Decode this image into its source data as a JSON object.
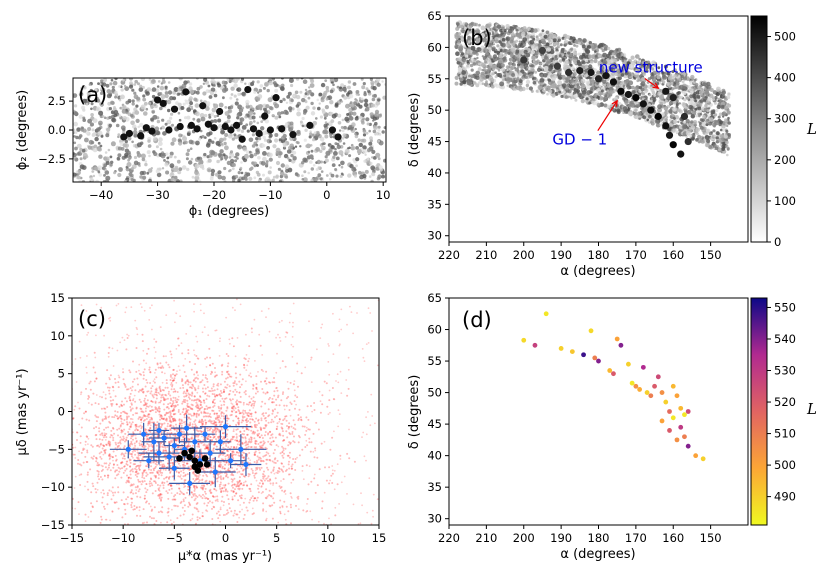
{
  "chart_data": [
    {
      "panel": "(a)",
      "type": "scatter",
      "xlabel": "ϕ₁ (degrees)",
      "ylabel": "ϕ₂ (degrees)",
      "xlim": [
        -45,
        10.5
      ],
      "ylim": [
        -4.5,
        4.5
      ],
      "xticks": [
        -40,
        -30,
        -20,
        -10,
        0,
        10
      ],
      "yticks": [
        -2.5,
        0.0,
        2.5
      ],
      "xtick_labels": [
        "−40",
        "−30",
        "−20",
        "−10",
        "0",
        "10"
      ],
      "ytick_labels": [
        "−2.5",
        "0.0",
        "2.5"
      ],
      "background_points": "dense grey field across full panel",
      "stream_points": [
        {
          "x": -36,
          "y": -0.6
        },
        {
          "x": -35,
          "y": -0.3
        },
        {
          "x": -33,
          "y": -0.5
        },
        {
          "x": -32,
          "y": 0.2
        },
        {
          "x": -31,
          "y": -0.1
        },
        {
          "x": -30,
          "y": 2.6
        },
        {
          "x": -29,
          "y": 2.3
        },
        {
          "x": -28,
          "y": 0.0
        },
        {
          "x": -27,
          "y": 1.8
        },
        {
          "x": -26,
          "y": 0.3
        },
        {
          "x": -25,
          "y": 3.3
        },
        {
          "x": -24,
          "y": 0.4
        },
        {
          "x": -23,
          "y": 0.1
        },
        {
          "x": -22,
          "y": 2.1
        },
        {
          "x": -21,
          "y": 0.5
        },
        {
          "x": -20,
          "y": 0.2
        },
        {
          "x": -19,
          "y": 1.6
        },
        {
          "x": -18,
          "y": 0.3
        },
        {
          "x": -17,
          "y": 0.0
        },
        {
          "x": -16,
          "y": 0.4
        },
        {
          "x": -15,
          "y": -0.8
        },
        {
          "x": -14,
          "y": 3.5
        },
        {
          "x": -13,
          "y": 0.1
        },
        {
          "x": -12,
          "y": -0.3
        },
        {
          "x": -11,
          "y": 1.2
        },
        {
          "x": -10,
          "y": 0.0
        },
        {
          "x": -9,
          "y": 2.8
        },
        {
          "x": -8,
          "y": 0.1
        },
        {
          "x": -6,
          "y": -0.4
        },
        {
          "x": -3,
          "y": 0.4
        },
        {
          "x": 1,
          "y": 0.0
        },
        {
          "x": 2,
          "y": -0.6
        }
      ]
    },
    {
      "panel": "(b)",
      "type": "scatter",
      "xlabel": "α (degrees)",
      "ylabel": "δ (degrees)",
      "xlim": [
        220,
        140
      ],
      "ylim": [
        29,
        65
      ],
      "xticks": [
        220,
        210,
        200,
        190,
        180,
        170,
        160,
        150
      ],
      "yticks": [
        30,
        35,
        40,
        45,
        50,
        55,
        60,
        65
      ],
      "colorbar": {
        "label": "L",
        "min": 0,
        "max": 550,
        "ticks": [
          0,
          100,
          200,
          300,
          400,
          500
        ],
        "cmap": "greys"
      },
      "annotations": [
        {
          "text": "new structure",
          "x": 166,
          "y": 56.0,
          "arrow_to": [
            164,
            53.5
          ]
        },
        {
          "text": "GD − 1",
          "x": 185,
          "y": 44.5,
          "arrow_to": [
            175,
            51.5
          ]
        }
      ],
      "stream_points": [
        {
          "x": 191,
          "y": 57.0,
          "L": 420
        },
        {
          "x": 188,
          "y": 56.0,
          "L": 450
        },
        {
          "x": 185,
          "y": 56.3,
          "L": 480
        },
        {
          "x": 182,
          "y": 56.0,
          "L": 500
        },
        {
          "x": 180,
          "y": 55.0,
          "L": 470
        },
        {
          "x": 178,
          "y": 55.5,
          "L": 510
        },
        {
          "x": 176,
          "y": 54.5,
          "L": 520
        },
        {
          "x": 174,
          "y": 53.0,
          "L": 530
        },
        {
          "x": 172,
          "y": 52.5,
          "L": 500
        },
        {
          "x": 170,
          "y": 52.0,
          "L": 540
        },
        {
          "x": 168,
          "y": 51.0,
          "L": 510
        },
        {
          "x": 166,
          "y": 50.0,
          "L": 530
        },
        {
          "x": 164,
          "y": 49.0,
          "L": 545
        },
        {
          "x": 162,
          "y": 47.5,
          "L": 520
        },
        {
          "x": 161,
          "y": 46.0,
          "L": 500
        },
        {
          "x": 160,
          "y": 44.5,
          "L": 540
        },
        {
          "x": 158,
          "y": 43.0,
          "L": 510
        },
        {
          "x": 162,
          "y": 53.0,
          "L": 500
        },
        {
          "x": 160,
          "y": 52.0,
          "L": 480
        },
        {
          "x": 157,
          "y": 49.0,
          "L": 460
        },
        {
          "x": 156,
          "y": 45.0,
          "L": 450
        },
        {
          "x": 200,
          "y": 58.0,
          "L": 430
        },
        {
          "x": 195,
          "y": 59.5,
          "L": 410
        }
      ]
    },
    {
      "panel": "(c)",
      "type": "scatter",
      "xlabel": "μ*α (mas yr⁻¹)",
      "ylabel": "μδ (mas yr⁻¹)",
      "xlim": [
        -15,
        15
      ],
      "ylim": [
        -15,
        15
      ],
      "xticks": [
        -15,
        -10,
        -5,
        0,
        5,
        10,
        15
      ],
      "yticks": [
        -15,
        -10,
        -5,
        0,
        5,
        10,
        15
      ],
      "xtick_labels": [
        "−15",
        "−10",
        "−5",
        "0",
        "5",
        "10",
        "15"
      ],
      "ytick_labels": [
        "−15",
        "−10",
        "−5",
        "0",
        "5",
        "10",
        "15"
      ],
      "background_points": "dense red field centred near (-3, -4)",
      "measurements": [
        {
          "x": -9.5,
          "y": -5.0,
          "ex": 1.8,
          "ey": 1.2
        },
        {
          "x": -8.0,
          "y": -3.0,
          "ex": 1.5,
          "ey": 1.5
        },
        {
          "x": -7.0,
          "y": -4.0,
          "ex": 1.2,
          "ey": 2.5
        },
        {
          "x": -6.5,
          "y": -5.5,
          "ex": 2.0,
          "ey": 1.5
        },
        {
          "x": -6.0,
          "y": -3.5,
          "ex": 1.5,
          "ey": 1.0
        },
        {
          "x": -5.5,
          "y": -6.0,
          "ex": 2.5,
          "ey": 1.8
        },
        {
          "x": -5.0,
          "y": -4.5,
          "ex": 1.0,
          "ey": 1.0
        },
        {
          "x": -5.0,
          "y": -7.5,
          "ex": 1.5,
          "ey": 1.5
        },
        {
          "x": -4.5,
          "y": -3.0,
          "ex": 1.8,
          "ey": 1.2
        },
        {
          "x": -4.0,
          "y": -5.0,
          "ex": 1.0,
          "ey": 1.5
        },
        {
          "x": -3.5,
          "y": -9.5,
          "ex": 2.0,
          "ey": 1.5
        },
        {
          "x": -3.0,
          "y": -4.0,
          "ex": 1.5,
          "ey": 2.0
        },
        {
          "x": -2.5,
          "y": -6.5,
          "ex": 2.5,
          "ey": 1.5
        },
        {
          "x": -2.0,
          "y": -3.0,
          "ex": 1.0,
          "ey": 1.0
        },
        {
          "x": -1.5,
          "y": -5.5,
          "ex": 1.5,
          "ey": 1.8
        },
        {
          "x": -1.0,
          "y": -8.0,
          "ex": 2.0,
          "ey": 2.0
        },
        {
          "x": -0.5,
          "y": -4.0,
          "ex": 1.0,
          "ey": 1.5
        },
        {
          "x": 0.0,
          "y": -2.0,
          "ex": 2.5,
          "ey": 1.5
        },
        {
          "x": 0.5,
          "y": -6.5,
          "ex": 1.5,
          "ey": 1.0
        },
        {
          "x": 1.5,
          "y": -5.0,
          "ex": 2.5,
          "ey": 2.0
        },
        {
          "x": 2.0,
          "y": -7.0,
          "ex": 1.5,
          "ey": 1.5
        },
        {
          "x": -7.5,
          "y": -6.5,
          "ex": 1.5,
          "ey": 1.0
        },
        {
          "x": -6.5,
          "y": -2.5,
          "ex": 1.0,
          "ey": 1.0
        },
        {
          "x": -3.8,
          "y": -2.2,
          "ex": 1.5,
          "ey": 1.8
        }
      ],
      "mean_points": [
        {
          "x": -4.0,
          "y": -5.5
        },
        {
          "x": -3.5,
          "y": -6.0
        },
        {
          "x": -3.0,
          "y": -6.5
        },
        {
          "x": -2.5,
          "y": -7.0
        },
        {
          "x": -3.0,
          "y": -7.3
        },
        {
          "x": -2.0,
          "y": -6.2
        },
        {
          "x": -4.5,
          "y": -6.2
        },
        {
          "x": -3.3,
          "y": -5.2
        },
        {
          "x": -2.7,
          "y": -7.8
        },
        {
          "x": -1.8,
          "y": -7.0
        }
      ]
    },
    {
      "panel": "(d)",
      "type": "scatter",
      "xlabel": "α (degrees)",
      "ylabel": "δ (degrees)",
      "xlim": [
        220,
        140
      ],
      "ylim": [
        29,
        65
      ],
      "xticks": [
        220,
        210,
        200,
        190,
        180,
        170,
        160,
        150
      ],
      "yticks": [
        30,
        35,
        40,
        45,
        50,
        55,
        60,
        65
      ],
      "colorbar": {
        "label": "L",
        "min": 481,
        "max": 553,
        "ticks": [
          490,
          500,
          510,
          520,
          530,
          540,
          550
        ],
        "cmap": "plasma_r"
      },
      "points": [
        {
          "x": 194,
          "y": 62.5,
          "L": 485
        },
        {
          "x": 200,
          "y": 58.3,
          "L": 488
        },
        {
          "x": 197,
          "y": 57.5,
          "L": 528
        },
        {
          "x": 190,
          "y": 57.0,
          "L": 490
        },
        {
          "x": 187,
          "y": 56.5,
          "L": 492
        },
        {
          "x": 184,
          "y": 56.0,
          "L": 548
        },
        {
          "x": 182,
          "y": 59.8,
          "L": 488
        },
        {
          "x": 181,
          "y": 55.5,
          "L": 510
        },
        {
          "x": 180,
          "y": 55.0,
          "L": 540
        },
        {
          "x": 177,
          "y": 53.5,
          "L": 495
        },
        {
          "x": 176,
          "y": 53.0,
          "L": 520
        },
        {
          "x": 175,
          "y": 58.5,
          "L": 500
        },
        {
          "x": 174,
          "y": 57.5,
          "L": 540
        },
        {
          "x": 172,
          "y": 54.5,
          "L": 490
        },
        {
          "x": 171,
          "y": 51.5,
          "L": 485
        },
        {
          "x": 170,
          "y": 51.0,
          "L": 505
        },
        {
          "x": 169,
          "y": 50.5,
          "L": 498
        },
        {
          "x": 168,
          "y": 54.0,
          "L": 535
        },
        {
          "x": 167,
          "y": 50.0,
          "L": 490
        },
        {
          "x": 166,
          "y": 49.5,
          "L": 510
        },
        {
          "x": 165,
          "y": 51.0,
          "L": 520
        },
        {
          "x": 164,
          "y": 52.5,
          "L": 525
        },
        {
          "x": 163,
          "y": 50.0,
          "L": 505
        },
        {
          "x": 162,
          "y": 48.5,
          "L": 490
        },
        {
          "x": 161,
          "y": 47.0,
          "L": 515
        },
        {
          "x": 160,
          "y": 46.0,
          "L": 485
        },
        {
          "x": 160,
          "y": 51.0,
          "L": 495
        },
        {
          "x": 159,
          "y": 49.5,
          "L": 500
        },
        {
          "x": 158,
          "y": 44.5,
          "L": 530
        },
        {
          "x": 158,
          "y": 47.5,
          "L": 495
        },
        {
          "x": 157,
          "y": 43.0,
          "L": 510
        },
        {
          "x": 157,
          "y": 46.5,
          "L": 485
        },
        {
          "x": 156,
          "y": 41.5,
          "L": 540
        },
        {
          "x": 156,
          "y": 47.0,
          "L": 525
        },
        {
          "x": 154,
          "y": 40.0,
          "L": 500
        },
        {
          "x": 152,
          "y": 39.5,
          "L": 490
        },
        {
          "x": 163,
          "y": 45.5,
          "L": 500
        },
        {
          "x": 161,
          "y": 44.0,
          "L": 520
        },
        {
          "x": 159,
          "y": 42.5,
          "L": 505
        }
      ]
    }
  ]
}
